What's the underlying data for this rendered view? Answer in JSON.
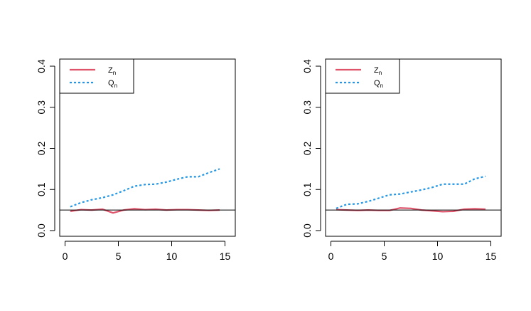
{
  "chart_data": [
    {
      "type": "line",
      "xlim": [
        0,
        15
      ],
      "ylim": [
        0,
        0.4
      ],
      "xticks": [
        "0",
        "5",
        "10",
        "15"
      ],
      "yticks": [
        "0.0",
        "0.1",
        "0.2",
        "0.3",
        "0.4"
      ],
      "reference_line": 0.05,
      "legend_position": "top-left",
      "x": [
        0.5,
        1.5,
        2.5,
        3.5,
        4.5,
        5.5,
        6.5,
        7.5,
        8.5,
        9.5,
        10.5,
        11.5,
        12.5,
        13.5,
        14.5
      ],
      "series": [
        {
          "name": "Z",
          "subscript": "n",
          "color": "#DF536B",
          "style": "solid",
          "values": [
            0.047,
            0.051,
            0.05,
            0.052,
            0.043,
            0.05,
            0.053,
            0.051,
            0.052,
            0.05,
            0.051,
            0.051,
            0.05,
            0.049,
            0.05
          ]
        },
        {
          "name": "Q",
          "subscript": "n",
          "color": "#2297E6",
          "style": "dotted",
          "values": [
            0.058,
            0.068,
            0.075,
            0.08,
            0.087,
            0.097,
            0.108,
            0.112,
            0.113,
            0.118,
            0.125,
            0.131,
            0.131,
            0.141,
            0.15
          ]
        }
      ]
    },
    {
      "type": "line",
      "xlim": [
        0,
        15
      ],
      "ylim": [
        0,
        0.4
      ],
      "xticks": [
        "0",
        "5",
        "10",
        "15"
      ],
      "yticks": [
        "0.0",
        "0.1",
        "0.2",
        "0.3",
        "0.4"
      ],
      "reference_line": 0.05,
      "legend_position": "top-left",
      "x": [
        0.5,
        1.5,
        2.5,
        3.5,
        4.5,
        5.5,
        6.5,
        7.5,
        8.5,
        9.5,
        10.5,
        11.5,
        12.5,
        13.5,
        14.5
      ],
      "series": [
        {
          "name": "Z",
          "subscript": "n",
          "color": "#DF536B",
          "style": "solid",
          "values": [
            0.051,
            0.05,
            0.049,
            0.05,
            0.049,
            0.049,
            0.055,
            0.054,
            0.05,
            0.048,
            0.046,
            0.047,
            0.052,
            0.053,
            0.052
          ]
        },
        {
          "name": "Q",
          "subscript": "n",
          "color": "#2297E6",
          "style": "dotted",
          "values": [
            0.054,
            0.064,
            0.065,
            0.071,
            0.079,
            0.087,
            0.089,
            0.094,
            0.099,
            0.105,
            0.113,
            0.113,
            0.113,
            0.126,
            0.132
          ]
        }
      ]
    }
  ]
}
